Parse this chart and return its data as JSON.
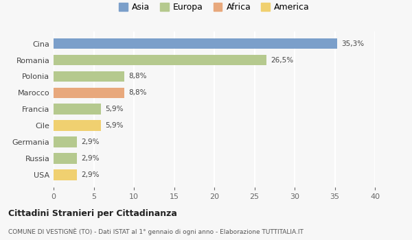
{
  "categories": [
    "Cina",
    "Romania",
    "Polonia",
    "Marocco",
    "Francia",
    "Cile",
    "Germania",
    "Russia",
    "USA"
  ],
  "values": [
    35.3,
    26.5,
    8.8,
    8.8,
    5.9,
    5.9,
    2.9,
    2.9,
    2.9
  ],
  "labels": [
    "35,3%",
    "26,5%",
    "8,8%",
    "8,8%",
    "5,9%",
    "5,9%",
    "2,9%",
    "2,9%",
    "2,9%"
  ],
  "colors": [
    "#7b9fca",
    "#b5c98e",
    "#b5c98e",
    "#e8a87c",
    "#b5c98e",
    "#f0d070",
    "#b5c98e",
    "#b5c98e",
    "#f0d070"
  ],
  "legend_labels": [
    "Asia",
    "Europa",
    "Africa",
    "America"
  ],
  "legend_colors": [
    "#7b9fca",
    "#b5c98e",
    "#e8a87c",
    "#f0d070"
  ],
  "title": "Cittadini Stranieri per Cittadinanza",
  "subtitle": "COMUNE DI VESTIGNÈ (TO) - Dati ISTAT al 1° gennaio di ogni anno - Elaborazione TUTTITALIA.IT",
  "xlim": [
    0,
    40
  ],
  "xticks": [
    0,
    5,
    10,
    15,
    20,
    25,
    30,
    35,
    40
  ],
  "background_color": "#f7f7f7",
  "grid_color": "#ffffff",
  "bar_height": 0.65
}
